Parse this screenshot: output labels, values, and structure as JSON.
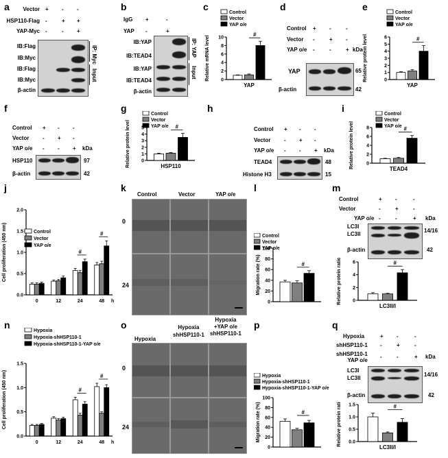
{
  "panels": {
    "a": {
      "letter": "a",
      "conditions": [
        "Vector",
        "HSP110-Flag",
        "YAP-Myc"
      ],
      "signs": [
        [
          "+",
          "-",
          "-"
        ],
        [
          "-",
          "+",
          "+"
        ],
        [
          "-",
          "-",
          "+"
        ]
      ],
      "rows": [
        "IB:Flag",
        "IB:Myc",
        "IB:Flag",
        "IB:Myc",
        "β-actin"
      ],
      "side_labels": [
        "IP: Myc",
        "Input"
      ]
    },
    "b": {
      "letter": "b",
      "conditions": [
        "IgG",
        "YAP"
      ],
      "signs": [
        [
          "+",
          "-"
        ],
        [
          "-",
          "+"
        ]
      ],
      "rows": [
        "IB:YAP",
        "IB:TEAD4",
        "IB:YAP",
        "IB:TEAD4",
        "β-actin"
      ],
      "side_labels": [
        "IP: YAP",
        "Input"
      ]
    },
    "c": {
      "letter": "c"
    },
    "d": {
      "letter": "d",
      "conditions": [
        "Control",
        "Vector",
        "YAP o/e"
      ],
      "signs": [
        [
          "+",
          "-",
          "-"
        ],
        [
          "-",
          "+",
          "-"
        ],
        [
          "-",
          "-",
          "+"
        ]
      ],
      "rows": [
        "YAP",
        "β-actin"
      ],
      "kda": [
        "kDa",
        "65",
        "42"
      ]
    },
    "e": {
      "letter": "e"
    },
    "f": {
      "letter": "f",
      "conditions": [
        "Control",
        "Vector",
        "YAP o/e"
      ],
      "signs": [
        [
          "+",
          "-",
          "-"
        ],
        [
          "-",
          "+",
          "-"
        ],
        [
          "-",
          "-",
          "+"
        ]
      ],
      "rows": [
        "HSP110",
        "β-actin"
      ],
      "kda": [
        "kDa",
        "97",
        "42"
      ]
    },
    "g": {
      "letter": "g"
    },
    "h": {
      "letter": "h",
      "conditions": [
        "Control",
        "Vector",
        "YAP o/e"
      ],
      "signs": [
        [
          "+",
          "-",
          "-"
        ],
        [
          "-",
          "+",
          "-"
        ],
        [
          "-",
          "-",
          "+"
        ]
      ],
      "rows": [
        "TEAD4",
        "Histone H3"
      ],
      "kda": [
        "kDa",
        "48",
        "15"
      ]
    },
    "i": {
      "letter": "i"
    },
    "j": {
      "letter": "j"
    },
    "k": {
      "letter": "k",
      "columns": [
        "Control",
        "Vector",
        "YAP o/e"
      ],
      "row_labels": [
        "0",
        "24"
      ]
    },
    "l": {
      "letter": "l"
    },
    "m": {
      "letter": "m",
      "conditions": [
        "Control",
        "Vector",
        "YAP o/e"
      ],
      "signs": [
        [
          "+",
          "-",
          "-"
        ],
        [
          "-",
          "+",
          "-"
        ],
        [
          "-",
          "-",
          "+"
        ]
      ],
      "rows": [
        "LC3I",
        "LC3II",
        "β-actin"
      ],
      "kda": [
        "kDa",
        "14/16",
        "42"
      ]
    },
    "n": {
      "letter": "n"
    },
    "o": {
      "letter": "o",
      "columns": [
        "Hypoxia",
        "Hypoxia\nshHSP110-1",
        "Hypoxia\n+YAP o/e\nshHSP110-1"
      ],
      "row_labels": [
        "0",
        "24"
      ]
    },
    "p": {
      "letter": "p"
    },
    "q": {
      "letter": "q",
      "conditions": [
        "Hypoxia",
        "shHSP110-1",
        "shHSP110-1\nYAP o/e"
      ],
      "signs": [
        [
          "+",
          "-",
          "-"
        ],
        [
          "-",
          "+",
          "-"
        ],
        [
          "-",
          "-",
          "+"
        ]
      ],
      "rows": [
        "LC3I",
        "LC3II",
        "β-actin"
      ],
      "kda": [
        "kDa",
        "14/16",
        "42"
      ]
    }
  },
  "chart_data": [
    {
      "panel": "c",
      "type": "bar",
      "categories": [
        "Control",
        "Vector",
        "YAP o/e"
      ],
      "values": [
        1.0,
        1.1,
        8.0
      ],
      "errors": [
        0.1,
        0.2,
        1.0
      ],
      "title": "",
      "xlabel": "YAP",
      "ylabel": "Relative mRNA level",
      "ylim": [
        0,
        10
      ],
      "yticks": [
        "0",
        "2",
        "4",
        "6",
        "8",
        "10"
      ],
      "legend": [
        "Control",
        "Vector",
        "YAP o/e"
      ],
      "annotation": "#",
      "colors": [
        "#ffffff",
        "#808080",
        "#000000"
      ]
    },
    {
      "panel": "e",
      "type": "bar",
      "categories": [
        "Control",
        "Vector",
        "YAP o/e"
      ],
      "values": [
        1.0,
        1.2,
        4.0
      ],
      "errors": [
        0.1,
        0.2,
        0.8
      ],
      "title": "",
      "xlabel": "YAP",
      "ylabel": "Relative protein level",
      "ylim": [
        0,
        6
      ],
      "yticks": [
        "0",
        "1",
        "2",
        "3",
        "4",
        "5",
        "6"
      ],
      "legend": [
        "Control",
        "Vector",
        "YAP o/e"
      ],
      "annotation": "#",
      "colors": [
        "#ffffff",
        "#808080",
        "#000000"
      ]
    },
    {
      "panel": "g",
      "type": "bar",
      "categories": [
        "Control",
        "Vector",
        "YAP o/e"
      ],
      "values": [
        1.0,
        1.1,
        3.5
      ],
      "errors": [
        0.1,
        0.1,
        0.6
      ],
      "title": "",
      "xlabel": "HSP110",
      "ylabel": "Relative protein level",
      "ylim": [
        0,
        5
      ],
      "yticks": [
        "0",
        "1",
        "2",
        "3",
        "4",
        "5"
      ],
      "legend": [
        "Control",
        "Vector",
        "YAP o/e"
      ],
      "annotation": "#",
      "colors": [
        "#ffffff",
        "#808080",
        "#000000"
      ]
    },
    {
      "panel": "i",
      "type": "bar",
      "categories": [
        "Control",
        "Vector",
        "YAP o/e"
      ],
      "values": [
        1.0,
        1.1,
        5.6
      ],
      "errors": [
        0.1,
        0.2,
        0.6
      ],
      "title": "",
      "xlabel": "TEAD4",
      "ylabel": "Relative protein level",
      "ylim": [
        0,
        8
      ],
      "yticks": [
        "0",
        "2",
        "4",
        "6",
        "8"
      ],
      "legend": [
        "Control",
        "Vector",
        "YAP o/e"
      ],
      "annotation": "#",
      "colors": [
        "#ffffff",
        "#808080",
        "#000000"
      ]
    },
    {
      "panel": "j",
      "type": "bar",
      "categories": [
        "0",
        "12",
        "24",
        "48"
      ],
      "xunit": "h",
      "series": [
        {
          "name": "Control",
          "values": [
            0.25,
            0.32,
            0.57,
            0.7
          ],
          "errors": [
            0.03,
            0.03,
            0.05,
            0.06
          ]
        },
        {
          "name": "Vector",
          "values": [
            0.25,
            0.33,
            0.52,
            0.73
          ],
          "errors": [
            0.03,
            0.03,
            0.05,
            0.06
          ]
        },
        {
          "name": "YAP o/e",
          "values": [
            0.27,
            0.4,
            0.78,
            1.15
          ],
          "errors": [
            0.03,
            0.04,
            0.06,
            0.12
          ]
        }
      ],
      "title": "",
      "xlabel": "",
      "ylabel": "Cell proliferation (450 nm)",
      "ylim": [
        0,
        2.0
      ],
      "yticks": [
        "0.0",
        "0.5",
        "1.0",
        "1.5",
        "2.0"
      ],
      "annotations": [
        "#",
        "#"
      ],
      "colors": [
        "#ffffff",
        "#808080",
        "#000000"
      ]
    },
    {
      "panel": "l",
      "type": "bar",
      "categories": [
        "Control",
        "Vector",
        "YAP o/e"
      ],
      "values": [
        37,
        35,
        53
      ],
      "errors": [
        3,
        4,
        5
      ],
      "title": "",
      "xlabel": "",
      "ylabel": "Migration rate (%)",
      "ylim": [
        0,
        100
      ],
      "yticks": [
        "0",
        "20",
        "40",
        "60",
        "80",
        "100"
      ],
      "legend": [
        "Control",
        "Vector",
        "YAP o/e"
      ],
      "annotation": "#",
      "colors": [
        "#ffffff",
        "#808080",
        "#000000"
      ]
    },
    {
      "panel": "m",
      "type": "bar",
      "categories": [
        "Control",
        "Vector",
        "YAP o/e"
      ],
      "values": [
        1.0,
        1.0,
        4.3
      ],
      "errors": [
        0.2,
        0.1,
        0.5
      ],
      "title": "",
      "xlabel": "LC3II/I",
      "ylabel": "Relative protein ratio",
      "ylim": [
        0,
        6
      ],
      "yticks": [
        "0",
        "2",
        "4",
        "6"
      ],
      "annotation": "#",
      "colors": [
        "#ffffff",
        "#808080",
        "#000000"
      ]
    },
    {
      "panel": "n",
      "type": "bar",
      "categories": [
        "0",
        "12",
        "24",
        "48"
      ],
      "xunit": "h",
      "series": [
        {
          "name": "Hypoxia",
          "values": [
            0.22,
            0.37,
            0.75,
            1.02
          ],
          "errors": [
            0.02,
            0.03,
            0.05,
            0.07
          ]
        },
        {
          "name": "Hypoxia-shHSP110-1",
          "values": [
            0.22,
            0.33,
            0.43,
            0.47
          ],
          "errors": [
            0.02,
            0.03,
            0.04,
            0.03
          ]
        },
        {
          "name": "Hypoxia-shHSP110-1-YAP o/e",
          "values": [
            0.24,
            0.36,
            0.66,
            1.0
          ],
          "errors": [
            0.02,
            0.03,
            0.05,
            0.06
          ]
        }
      ],
      "title": "",
      "xlabel": "",
      "ylabel": "Cell proliferation (450 nm)",
      "ylim": [
        0,
        1.5
      ],
      "yticks": [
        "0.0",
        "0.5",
        "1.0",
        "1.5"
      ],
      "annotations": [
        "#",
        "#"
      ],
      "colors": [
        "#ffffff",
        "#808080",
        "#000000"
      ]
    },
    {
      "panel": "p",
      "type": "bar",
      "categories": [
        "Hypoxia",
        "Hypoxia-shHSP110-1",
        "Hypoxia-shHSP110-1-YAP o/e"
      ],
      "values": [
        52,
        35,
        49
      ],
      "errors": [
        5,
        3,
        5
      ],
      "title": "",
      "xlabel": "",
      "ylabel": "Migration rate (%)",
      "ylim": [
        0,
        100
      ],
      "yticks": [
        "0",
        "20",
        "40",
        "60",
        "80",
        "100"
      ],
      "legend": [
        "Hypoxia",
        "Hypoxia-shHSP110-1",
        "Hypoxia-shHSP110-1-YAP o/e"
      ],
      "annotation": "#",
      "colors": [
        "#ffffff",
        "#808080",
        "#000000"
      ]
    },
    {
      "panel": "q",
      "type": "bar",
      "categories": [
        "Hypoxia",
        "shHSP110-1",
        "shHSP110-1 YAP o/e"
      ],
      "values": [
        1.0,
        0.35,
        0.78
      ],
      "errors": [
        0.15,
        0.04,
        0.15
      ],
      "title": "",
      "xlabel": "LC3II/I",
      "ylabel": "Relative protein ratio",
      "ylim": [
        0,
        1.5
      ],
      "yticks": [
        "0.0",
        "0.5",
        "1.0",
        "1.5"
      ],
      "annotation": "#",
      "colors": [
        "#ffffff",
        "#808080",
        "#000000"
      ]
    }
  ]
}
